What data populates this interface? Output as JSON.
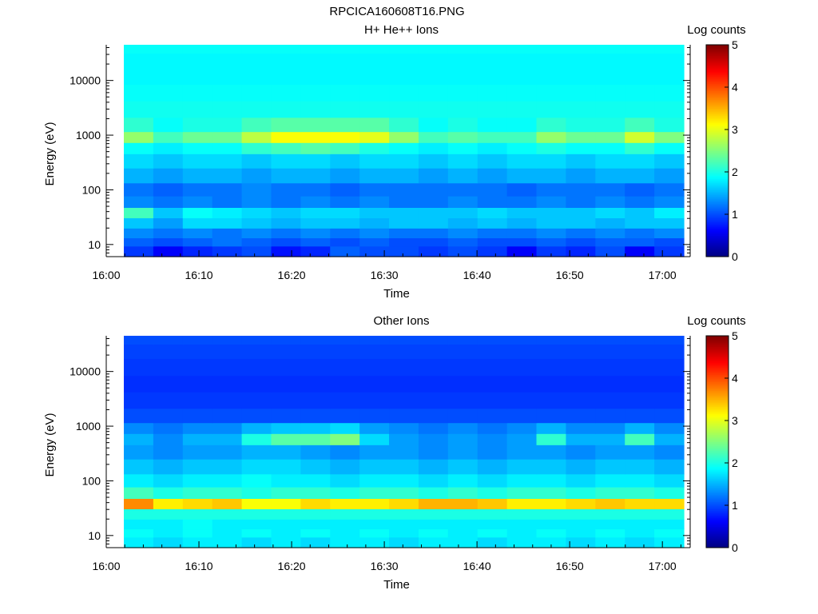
{
  "figure_title": "RPCICA160608T16.PNG",
  "chart_data": [
    {
      "type": "heatmap",
      "title": "H+ He++ Ions",
      "xlabel": "Time",
      "ylabel": "Energy (eV)",
      "x_ticks": [
        "16:00",
        "16:10",
        "16:20",
        "16:30",
        "16:40",
        "16:50",
        "17:00"
      ],
      "x_range": [
        "16:00",
        "17:03"
      ],
      "data_start": "16:02",
      "y_scale": "log",
      "y_ticks": [
        "10",
        "100",
        "1000",
        "10000"
      ],
      "y_range": [
        6,
        45000
      ],
      "colorbar": {
        "label": "Log counts",
        "range": [
          0,
          5
        ],
        "ticks": [
          "0",
          "1",
          "2",
          "3",
          "4",
          "5"
        ]
      },
      "time_bins": 19,
      "energy_levels_eV": [
        8,
        11,
        16,
        25,
        38,
        60,
        100,
        180,
        350,
        600,
        900,
        1500,
        3000,
        6000,
        12000,
        25000,
        40000
      ],
      "log_counts": [
        [
          0.9,
          0.6,
          0.8,
          0.9,
          1.0,
          0.7,
          0.8,
          1.1,
          1.0,
          1.0,
          0.9,
          1.0,
          0.9,
          0.6,
          0.9,
          0.8,
          1.0,
          0.6,
          0.9
        ],
        [
          1.1,
          1.0,
          1.1,
          1.2,
          1.1,
          1.0,
          1.1,
          1.0,
          1.1,
          1.0,
          1.0,
          1.1,
          1.0,
          1.0,
          1.1,
          1.0,
          1.1,
          1.1,
          1.0
        ],
        [
          1.3,
          1.2,
          1.3,
          1.2,
          1.3,
          1.2,
          1.3,
          1.2,
          1.3,
          1.2,
          1.2,
          1.3,
          1.2,
          1.2,
          1.3,
          1.2,
          1.3,
          1.2,
          1.3
        ],
        [
          1.6,
          1.4,
          1.7,
          1.7,
          1.6,
          1.5,
          1.6,
          1.6,
          1.5,
          1.6,
          1.6,
          1.5,
          1.6,
          1.5,
          1.6,
          1.6,
          1.5,
          1.6,
          1.6
        ],
        [
          2.2,
          1.6,
          1.9,
          1.8,
          1.7,
          1.6,
          1.7,
          1.7,
          1.6,
          1.6,
          1.6,
          1.6,
          1.7,
          1.6,
          1.6,
          1.6,
          1.7,
          1.6,
          1.8
        ],
        [
          1.3,
          1.2,
          1.3,
          1.2,
          1.3,
          1.2,
          1.3,
          1.2,
          1.3,
          1.2,
          1.2,
          1.3,
          1.2,
          1.2,
          1.3,
          1.2,
          1.3,
          1.2,
          1.3
        ],
        [
          1.2,
          1.1,
          1.2,
          1.2,
          1.3,
          1.2,
          1.2,
          1.1,
          1.2,
          1.2,
          1.2,
          1.2,
          1.2,
          1.1,
          1.2,
          1.2,
          1.2,
          1.1,
          1.2
        ],
        [
          1.5,
          1.4,
          1.5,
          1.5,
          1.4,
          1.5,
          1.5,
          1.4,
          1.5,
          1.5,
          1.4,
          1.5,
          1.4,
          1.5,
          1.5,
          1.4,
          1.5,
          1.5,
          1.4
        ],
        [
          1.7,
          1.6,
          1.7,
          1.7,
          1.6,
          1.7,
          1.7,
          1.6,
          1.7,
          1.7,
          1.6,
          1.7,
          1.6,
          1.7,
          1.7,
          1.6,
          1.7,
          1.7,
          1.6
        ],
        [
          1.9,
          1.8,
          1.9,
          1.9,
          2.1,
          2.2,
          2.3,
          2.2,
          2.0,
          1.9,
          1.8,
          1.9,
          1.8,
          1.9,
          2.0,
          1.9,
          1.9,
          2.1,
          1.9
        ],
        [
          2.6,
          2.2,
          2.4,
          2.4,
          2.8,
          3.1,
          3.1,
          3.1,
          3.0,
          2.6,
          2.2,
          2.3,
          2.2,
          2.2,
          2.6,
          2.4,
          2.4,
          2.9,
          2.5
        ],
        [
          2.1,
          1.9,
          2.0,
          2.0,
          2.2,
          2.3,
          2.3,
          2.3,
          2.3,
          2.1,
          1.9,
          2.0,
          1.9,
          1.9,
          2.1,
          2.0,
          2.0,
          2.2,
          2.0
        ],
        [
          1.95,
          1.95,
          1.95,
          1.95,
          1.95,
          1.95,
          1.95,
          1.95,
          1.95,
          1.95,
          1.95,
          1.95,
          1.95,
          1.95,
          1.95,
          1.95,
          1.95,
          1.95,
          1.95
        ],
        [
          1.9,
          1.9,
          1.9,
          1.9,
          1.9,
          1.9,
          1.9,
          1.9,
          1.9,
          1.9,
          1.9,
          1.9,
          1.9,
          1.9,
          1.9,
          1.9,
          1.9,
          1.9,
          1.9
        ],
        [
          1.85,
          1.85,
          1.85,
          1.85,
          1.85,
          1.85,
          1.85,
          1.85,
          1.85,
          1.85,
          1.85,
          1.85,
          1.85,
          1.85,
          1.85,
          1.85,
          1.85,
          1.85,
          1.85
        ],
        [
          1.85,
          1.85,
          1.85,
          1.85,
          1.85,
          1.85,
          1.85,
          1.85,
          1.85,
          1.85,
          1.85,
          1.85,
          1.85,
          1.85,
          1.85,
          1.85,
          1.85,
          1.85,
          1.85
        ],
        [
          1.9,
          1.9,
          1.9,
          1.9,
          1.9,
          1.9,
          1.9,
          1.9,
          1.9,
          1.9,
          1.9,
          1.9,
          1.9,
          1.9,
          1.9,
          1.9,
          1.9,
          1.9,
          1.9
        ]
      ]
    },
    {
      "type": "heatmap",
      "title": "Other Ions",
      "xlabel": "Time",
      "ylabel": "Energy (eV)",
      "x_ticks": [
        "16:00",
        "16:10",
        "16:20",
        "16:30",
        "16:40",
        "16:50",
        "17:00"
      ],
      "x_range": [
        "16:00",
        "17:03"
      ],
      "data_start": "16:02",
      "y_scale": "log",
      "y_ticks": [
        "10",
        "100",
        "1000",
        "10000"
      ],
      "y_range": [
        6,
        45000
      ],
      "colorbar": {
        "label": "Log counts",
        "range": [
          0,
          5
        ],
        "ticks": [
          "0",
          "1",
          "2",
          "3",
          "4",
          "5"
        ]
      },
      "time_bins": 19,
      "energy_levels_eV": [
        8,
        11,
        16,
        25,
        38,
        60,
        100,
        180,
        350,
        600,
        900,
        1500,
        3000,
        6000,
        12000,
        25000,
        40000
      ],
      "log_counts": [
        [
          1.8,
          1.7,
          1.8,
          1.8,
          1.7,
          1.8,
          1.7,
          1.8,
          1.8,
          1.7,
          1.8,
          1.8,
          1.7,
          1.8,
          1.8,
          1.7,
          1.8,
          1.7,
          1.8
        ],
        [
          1.9,
          1.8,
          1.9,
          1.8,
          1.9,
          1.8,
          1.9,
          1.8,
          1.9,
          1.8,
          1.9,
          1.8,
          1.9,
          1.8,
          1.9,
          1.8,
          1.9,
          1.8,
          1.9
        ],
        [
          1.8,
          1.8,
          1.9,
          1.8,
          1.8,
          1.8,
          1.8,
          1.8,
          1.8,
          1.8,
          1.8,
          1.8,
          1.8,
          1.8,
          1.8,
          1.8,
          1.8,
          1.8,
          1.8
        ],
        [
          2.0,
          2.0,
          2.0,
          2.0,
          2.0,
          2.0,
          2.0,
          2.0,
          2.0,
          2.0,
          2.0,
          2.0,
          2.0,
          2.0,
          2.0,
          2.0,
          2.0,
          2.0,
          2.0
        ],
        [
          3.7,
          3.2,
          3.3,
          3.4,
          3.1,
          3.1,
          3.3,
          3.2,
          3.2,
          3.3,
          3.5,
          3.5,
          3.4,
          3.2,
          3.2,
          3.3,
          3.4,
          3.3,
          3.3
        ],
        [
          2.2,
          2.0,
          2.1,
          2.1,
          2.0,
          2.1,
          2.1,
          2.0,
          2.1,
          2.1,
          2.0,
          2.1,
          2.0,
          2.1,
          2.1,
          2.0,
          2.1,
          2.1,
          2.0
        ],
        [
          1.8,
          1.7,
          1.8,
          1.8,
          1.9,
          1.8,
          1.8,
          1.7,
          1.8,
          1.8,
          1.7,
          1.8,
          1.7,
          1.8,
          1.8,
          1.7,
          1.8,
          1.8,
          1.7
        ],
        [
          1.6,
          1.5,
          1.6,
          1.6,
          1.7,
          1.7,
          1.6,
          1.5,
          1.6,
          1.6,
          1.5,
          1.6,
          1.5,
          1.6,
          1.6,
          1.5,
          1.6,
          1.6,
          1.5
        ],
        [
          1.4,
          1.3,
          1.4,
          1.4,
          1.5,
          1.5,
          1.4,
          1.3,
          1.4,
          1.4,
          1.3,
          1.4,
          1.3,
          1.4,
          1.4,
          1.3,
          1.4,
          1.4,
          1.3
        ],
        [
          1.5,
          1.3,
          1.5,
          1.5,
          2.0,
          2.3,
          2.3,
          2.5,
          1.7,
          1.4,
          1.3,
          1.4,
          1.3,
          1.4,
          2.1,
          1.5,
          1.5,
          2.2,
          1.5
        ],
        [
          1.3,
          1.2,
          1.3,
          1.3,
          1.5,
          1.6,
          1.6,
          1.7,
          1.4,
          1.3,
          1.2,
          1.3,
          1.2,
          1.3,
          1.5,
          1.3,
          1.3,
          1.5,
          1.3
        ],
        [
          1.0,
          1.0,
          1.0,
          1.0,
          1.0,
          1.0,
          1.0,
          1.0,
          1.0,
          1.0,
          1.0,
          1.0,
          1.0,
          1.0,
          1.0,
          1.0,
          1.0,
          1.0,
          1.0
        ],
        [
          0.9,
          0.9,
          0.9,
          0.9,
          0.9,
          0.9,
          0.9,
          0.9,
          0.9,
          0.9,
          0.9,
          0.9,
          0.9,
          0.9,
          0.9,
          0.9,
          0.9,
          0.9,
          0.9
        ],
        [
          0.85,
          0.85,
          0.85,
          0.85,
          0.85,
          0.85,
          0.85,
          0.85,
          0.85,
          0.85,
          0.85,
          0.85,
          0.85,
          0.85,
          0.85,
          0.85,
          0.85,
          0.85,
          0.85
        ],
        [
          0.9,
          0.9,
          0.9,
          0.9,
          0.9,
          0.9,
          0.9,
          0.9,
          0.9,
          0.9,
          0.9,
          0.9,
          0.9,
          0.9,
          0.9,
          0.9,
          0.9,
          0.9,
          0.9
        ],
        [
          0.95,
          0.95,
          0.95,
          0.95,
          0.95,
          0.95,
          0.95,
          0.95,
          0.95,
          0.95,
          0.95,
          0.95,
          0.95,
          0.95,
          0.95,
          0.95,
          0.95,
          0.95,
          0.95
        ],
        [
          1.0,
          1.0,
          1.0,
          1.0,
          1.0,
          1.0,
          1.0,
          1.0,
          1.0,
          1.0,
          1.0,
          1.0,
          1.0,
          1.0,
          1.0,
          1.0,
          1.0,
          1.0,
          1.0
        ]
      ]
    }
  ]
}
